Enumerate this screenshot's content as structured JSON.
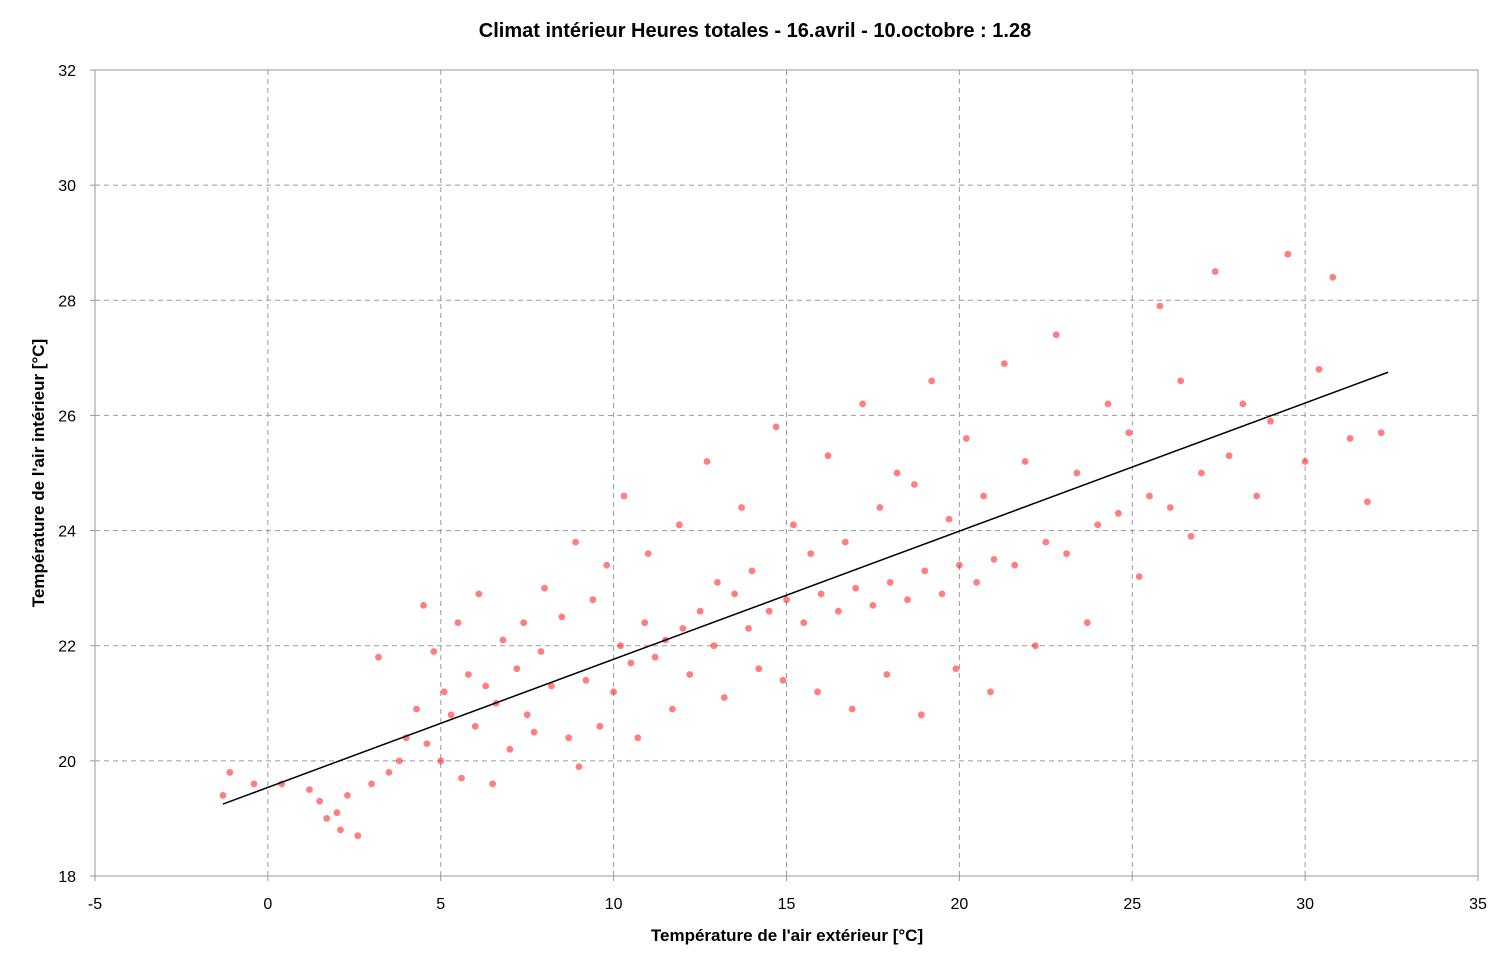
{
  "chart_data": {
    "type": "scatter",
    "title": "Climat intérieur Heures totales - 16.avril - 10.octobre : 1.28",
    "xlabel": "Température de l'air extérieur [°C]",
    "ylabel": "Température de l'air intérieur [°C]",
    "xlim": [
      -5,
      35
    ],
    "ylim": [
      18,
      32
    ],
    "xticks": [
      "-5",
      "0",
      "5",
      "10",
      "15",
      "20",
      "25",
      "30",
      "35"
    ],
    "yticks": [
      "18",
      "20",
      "22",
      "24",
      "26",
      "28",
      "30",
      "32"
    ],
    "grid": true,
    "legend": "none",
    "point_color": "#ff0000",
    "trendline_color": "#000000",
    "series": [
      {
        "kind": "points",
        "x": [
          -1.3,
          -1.1,
          -0.4,
          0.4,
          1.2,
          1.5,
          1.7,
          2.0,
          2.1,
          2.3,
          2.6,
          3.0,
          3.2,
          3.5,
          3.8,
          4.0,
          4.3,
          4.5,
          4.6,
          4.8,
          5.0,
          5.1,
          5.3,
          5.5,
          5.6,
          5.8,
          6.0,
          6.1,
          6.3,
          6.5,
          6.6,
          6.8,
          7.0,
          7.2,
          7.4,
          7.5,
          7.7,
          7.9,
          8.0,
          8.2,
          8.5,
          8.7,
          8.9,
          9.0,
          9.2,
          9.4,
          9.6,
          9.8,
          10.0,
          10.2,
          10.3,
          10.5,
          10.7,
          10.9,
          11.0,
          11.2,
          11.5,
          11.7,
          11.9,
          12.0,
          12.2,
          12.5,
          12.7,
          12.9,
          13.0,
          13.2,
          13.5,
          13.7,
          13.9,
          14.0,
          14.2,
          14.5,
          14.7,
          14.9,
          15.0,
          15.2,
          15.5,
          15.7,
          15.9,
          16.0,
          16.2,
          16.5,
          16.7,
          16.9,
          17.0,
          17.2,
          17.5,
          17.7,
          17.9,
          18.0,
          18.2,
          18.5,
          18.7,
          18.9,
          19.0,
          19.2,
          19.5,
          19.7,
          19.9,
          20.0,
          20.2,
          20.5,
          20.7,
          20.9,
          21.0,
          21.3,
          21.6,
          21.9,
          22.2,
          22.5,
          22.8,
          23.1,
          23.4,
          23.7,
          24.0,
          24.3,
          24.6,
          24.9,
          25.2,
          25.5,
          25.8,
          26.1,
          26.4,
          26.7,
          27.0,
          27.4,
          27.8,
          28.2,
          28.6,
          29.0,
          29.5,
          30.0,
          30.4,
          30.8,
          31.3,
          31.8,
          32.2
        ],
        "y": [
          19.4,
          19.8,
          19.6,
          19.6,
          19.5,
          19.3,
          19.0,
          19.1,
          18.8,
          19.4,
          18.7,
          19.6,
          21.8,
          19.8,
          20.0,
          20.4,
          20.9,
          22.7,
          20.3,
          21.9,
          20.0,
          21.2,
          20.8,
          22.4,
          19.7,
          21.5,
          20.6,
          22.9,
          21.3,
          19.6,
          21.0,
          22.1,
          20.2,
          21.6,
          22.4,
          20.8,
          20.5,
          21.9,
          23.0,
          21.3,
          22.5,
          20.4,
          23.8,
          19.9,
          21.4,
          22.8,
          20.6,
          23.4,
          21.2,
          22.0,
          24.6,
          21.7,
          20.4,
          22.4,
          23.6,
          21.8,
          22.1,
          20.9,
          24.1,
          22.3,
          21.5,
          22.6,
          25.2,
          22.0,
          23.1,
          21.1,
          22.9,
          24.4,
          22.3,
          23.3,
          21.6,
          22.6,
          25.8,
          21.4,
          22.8,
          24.1,
          22.4,
          23.6,
          21.2,
          22.9,
          25.3,
          22.6,
          23.8,
          20.9,
          23.0,
          26.2,
          22.7,
          24.4,
          21.5,
          23.1,
          25.0,
          22.8,
          24.8,
          20.8,
          23.3,
          26.6,
          22.9,
          24.2,
          21.6,
          23.4,
          25.6,
          23.1,
          24.6,
          21.2,
          23.5,
          26.9,
          23.4,
          25.2,
          22.0,
          23.8,
          27.4,
          23.6,
          25.0,
          22.4,
          24.1,
          26.2,
          24.3,
          25.7,
          23.2,
          24.6,
          27.9,
          24.4,
          26.6,
          23.9,
          25.0,
          28.5,
          25.3,
          26.2,
          24.6,
          25.9,
          28.8,
          25.2,
          26.8,
          28.4,
          25.6,
          24.5,
          25.7
        ]
      },
      {
        "kind": "trendline",
        "x": [
          -1.3,
          32.4
        ],
        "y": [
          19.25,
          26.75
        ]
      }
    ]
  }
}
